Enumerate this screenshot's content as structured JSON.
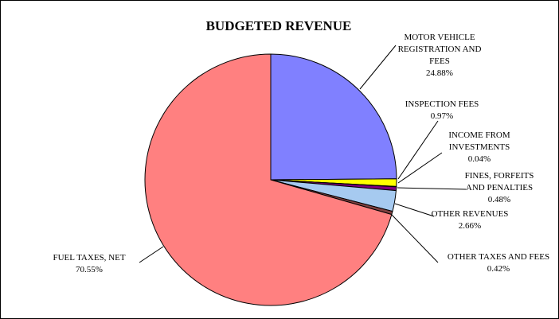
{
  "chart_data": {
    "type": "pie",
    "title": "BUDGETED REVENUE",
    "slices": [
      {
        "label": [
          "MOTOR VEHICLE",
          "REGISTRATION AND",
          "FEES"
        ],
        "value": 24.88,
        "percent_label": "24.88%",
        "color": "#8080ff"
      },
      {
        "label": [
          "INSPECTION FEES"
        ],
        "value": 0.97,
        "percent_label": "0.97%",
        "color": "#ffff00"
      },
      {
        "label": [
          "INCOME FROM",
          "INVESTMENTS"
        ],
        "value": 0.04,
        "percent_label": "0.04%",
        "color": "#404040"
      },
      {
        "label": [
          "FINES, FORFEITS",
          "AND PENALTIES"
        ],
        "value": 0.48,
        "percent_label": "0.48%",
        "color": "#800080"
      },
      {
        "label": [
          "OTHER REVENUES"
        ],
        "value": 2.66,
        "percent_label": "2.66%",
        "color": "#a6caf0"
      },
      {
        "label": [
          "OTHER TAXES AND FEES"
        ],
        "value": 0.42,
        "percent_label": "0.42%",
        "color": "#804040"
      },
      {
        "label": [
          "FUEL TAXES, NET"
        ],
        "value": 70.55,
        "percent_label": "70.55%",
        "color": "#ff8080"
      }
    ]
  }
}
